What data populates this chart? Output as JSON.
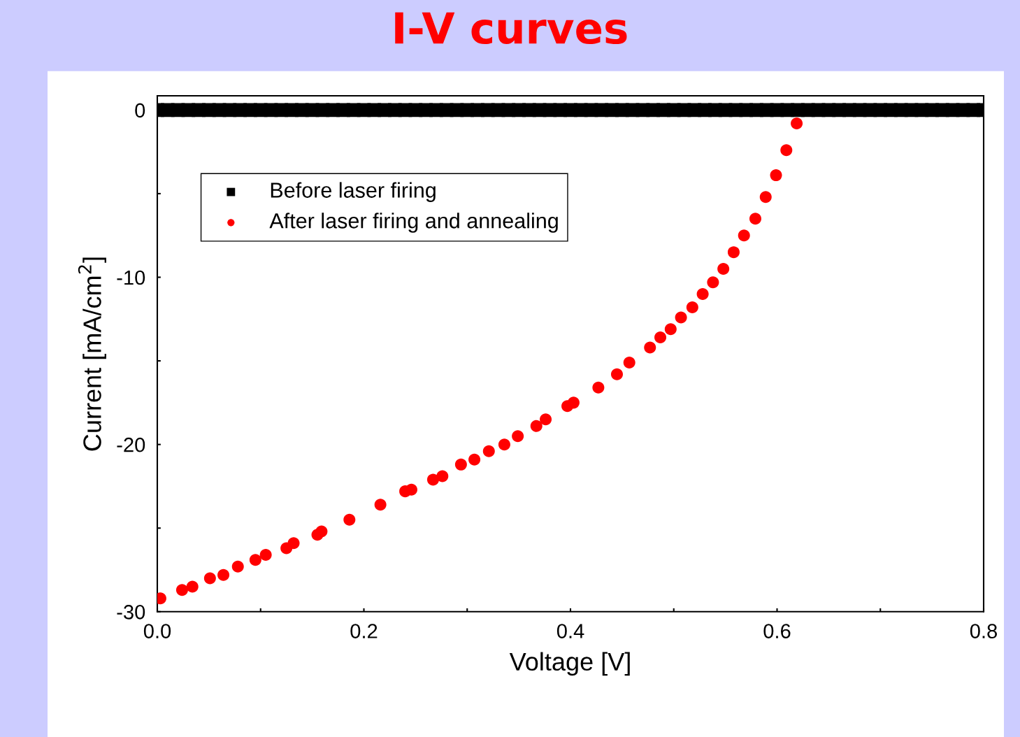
{
  "chart_data": {
    "type": "scatter",
    "title": "I-V curves",
    "xlabel": "Voltage [V]",
    "ylabel": "Current [mA/cm$^{2}$]",
    "xlim": [
      0,
      0.8
    ],
    "ylim": [
      -30,
      0.85
    ],
    "xticks": [
      {
        "value": 0,
        "label": "0.0"
      },
      {
        "value": 0.1,
        "label": null
      },
      {
        "value": 0.2,
        "label": "0.2"
      },
      {
        "value": 0.3,
        "label": null
      },
      {
        "value": 0.4,
        "label": "0.4"
      },
      {
        "value": 0.5,
        "label": null
      },
      {
        "value": 0.6,
        "label": "0.6"
      },
      {
        "value": 0.7,
        "label": null
      },
      {
        "value": 0.8,
        "label": "0.8"
      }
    ],
    "yticks": [
      {
        "value": -30,
        "label": "-30"
      },
      {
        "value": -25,
        "label": null
      },
      {
        "value": -20,
        "label": "-20"
      },
      {
        "value": -15,
        "label": null
      },
      {
        "value": -10,
        "label": "-10"
      },
      {
        "value": -5,
        "label": null
      },
      {
        "value": 0,
        "label": "0"
      }
    ],
    "grid": false,
    "legend": "top left",
    "series": [
      {
        "name": "Before laser firing",
        "color": "#000000",
        "marker": "square",
        "x": [
          0,
          0.01,
          0.02,
          0.03,
          0.04,
          0.05,
          0.06,
          0.07,
          0.08,
          0.09,
          0.1,
          0.11,
          0.12,
          0.13,
          0.14,
          0.15,
          0.16,
          0.17,
          0.18,
          0.19,
          0.2,
          0.21,
          0.22,
          0.23,
          0.24,
          0.25,
          0.26,
          0.27,
          0.28,
          0.29,
          0.3,
          0.31,
          0.32,
          0.33,
          0.34,
          0.35,
          0.36,
          0.37,
          0.38,
          0.39,
          0.4,
          0.41,
          0.42,
          0.43,
          0.44,
          0.45,
          0.46,
          0.47,
          0.48,
          0.49,
          0.5,
          0.51,
          0.52,
          0.53,
          0.54,
          0.55,
          0.56,
          0.57,
          0.58,
          0.59,
          0.6,
          0.61,
          0.62,
          0.63,
          0.64,
          0.65,
          0.66,
          0.67,
          0.68,
          0.69,
          0.7,
          0.71,
          0.72,
          0.73,
          0.74,
          0.75,
          0.76,
          0.77,
          0.78,
          0.79,
          0.8
        ],
        "values": [
          0,
          0,
          0,
          0,
          0,
          0,
          0,
          0,
          0,
          0,
          0,
          0,
          0,
          0,
          0,
          0,
          0,
          0,
          0,
          0,
          0,
          0,
          0,
          0,
          0,
          0,
          0,
          0,
          0,
          0,
          0,
          0,
          0,
          0,
          0,
          0,
          0,
          0,
          0,
          0,
          0,
          0,
          0,
          0,
          0,
          0,
          0,
          0,
          0,
          0,
          0,
          0,
          0,
          0,
          0,
          0,
          0,
          0,
          0,
          0,
          0,
          0,
          0,
          0,
          0,
          0,
          0,
          0,
          0,
          0,
          0,
          0,
          0,
          0,
          0,
          0,
          0,
          0,
          0,
          0,
          0
        ]
      },
      {
        "name": "After laser firing and annealing",
        "color": "#ff0000",
        "marker": "circle",
        "x": [
          0.003,
          0.024,
          0.034,
          0.051,
          0.064,
          0.078,
          0.095,
          0.105,
          0.125,
          0.132,
          0.155,
          0.159,
          0.186,
          0.216,
          0.24,
          0.246,
          0.267,
          0.276,
          0.294,
          0.307,
          0.321,
          0.336,
          0.349,
          0.367,
          0.376,
          0.397,
          0.403,
          0.427,
          0.445,
          0.457,
          0.477,
          0.487,
          0.497,
          0.507,
          0.518,
          0.528,
          0.538,
          0.548,
          0.558,
          0.568,
          0.579,
          0.589,
          0.599,
          0.609,
          0.619
        ],
        "values": [
          -29.2,
          -28.7,
          -28.5,
          -28.0,
          -27.8,
          -27.3,
          -26.9,
          -26.6,
          -26.2,
          -25.9,
          -25.4,
          -25.2,
          -24.5,
          -23.6,
          -22.8,
          -22.7,
          -22.1,
          -21.9,
          -21.2,
          -20.9,
          -20.4,
          -20.0,
          -19.5,
          -18.9,
          -18.5,
          -17.7,
          -17.5,
          -16.6,
          -15.8,
          -15.1,
          -14.2,
          -13.6,
          -13.1,
          -12.4,
          -11.8,
          -11.0,
          -10.3,
          -9.5,
          -8.5,
          -7.5,
          -6.5,
          -5.2,
          -3.9,
          -2.4,
          -0.8
        ]
      }
    ]
  }
}
